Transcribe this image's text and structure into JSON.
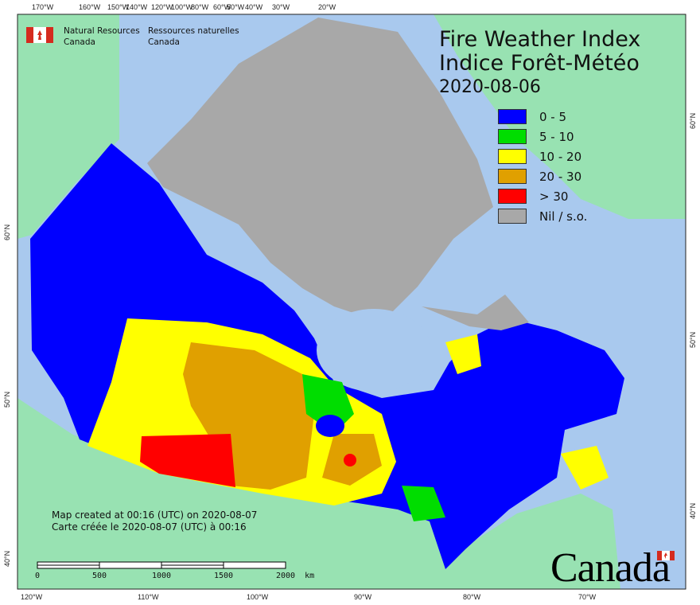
{
  "header": {
    "org_en": "Natural Resources",
    "org_en2": "Canada",
    "org_fr": "Ressources naturelles",
    "org_fr2": "Canada"
  },
  "title": {
    "line1": "Fire Weather Index",
    "line2": "Indice Forêt-Météo",
    "date": "2020-08-06"
  },
  "legend": [
    {
      "label": "0 - 5",
      "color": "#0000ff"
    },
    {
      "label": "5 - 10",
      "color": "#00dd00"
    },
    {
      "label": "10 - 20",
      "color": "#ffff00"
    },
    {
      "label": "20 - 30",
      "color": "#e0a000"
    },
    {
      "label": "> 30",
      "color": "#ff0000"
    },
    {
      "label": "Nil / s.o.",
      "color": "#a8a8a8"
    }
  ],
  "notes": {
    "en": "Map created at 00:16 (UTC) on 2020-08-07",
    "fr": "Carte créée le 2020-08-07 (UTC) à 00:16"
  },
  "scale_bar": {
    "labels": [
      "0",
      "500",
      "1000",
      "1500",
      "2000  km"
    ]
  },
  "axes": {
    "top": [
      "170°W",
      "160°W",
      "150°W",
      "140°W",
      "120°W",
      "100°W",
      "80°W",
      "60°W",
      "50°W",
      "40°W",
      "30°W",
      "20°W"
    ],
    "bottom": [
      "120°W",
      "110°W",
      "100°W",
      "90°W",
      "80°W",
      "70°W"
    ],
    "left": [
      "60°N",
      "50°N",
      "40°N"
    ],
    "right": [
      "60°N",
      "50°N",
      "40°N"
    ]
  },
  "wordmark": "Canada",
  "colors": {
    "ocean": "#a9c9ee",
    "foreign_land": "#98e2b2",
    "frame": "#222222"
  }
}
